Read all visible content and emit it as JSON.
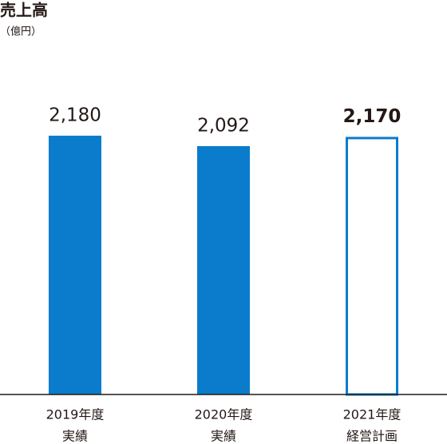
{
  "chart_data": {
    "type": "bar",
    "title": "売上高",
    "unit": "（億円）",
    "categories": [
      [
        "2019年度",
        "実績"
      ],
      [
        "2020年度",
        "実績"
      ],
      [
        "2021年度",
        "経営計画"
      ]
    ],
    "values": [
      2180,
      2092,
      2170
    ],
    "value_labels": [
      "2,180",
      "2,092",
      "2,170"
    ],
    "outlined": [
      false,
      false,
      true
    ],
    "color": "#0a7ccb",
    "ylim": [
      0,
      3000
    ]
  }
}
